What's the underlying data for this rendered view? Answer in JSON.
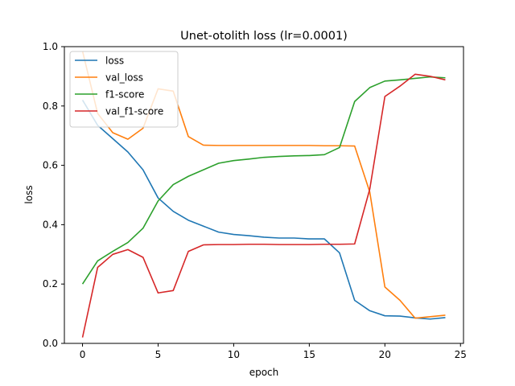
{
  "chart_data": {
    "type": "line",
    "title": "Unet-otolith loss (lr=0.0001)",
    "xlabel": "epoch",
    "ylabel": "loss",
    "xlim": [
      -1.2,
      25.2
    ],
    "ylim": [
      0,
      1.0
    ],
    "xticks": [
      0,
      5,
      10,
      15,
      20,
      25
    ],
    "yticks": [
      0.0,
      0.2,
      0.4,
      0.6,
      0.8,
      1.0
    ],
    "ytick_labels": [
      "0.0",
      "0.2",
      "0.4",
      "0.6",
      "0.8",
      "1.0"
    ],
    "grid": false,
    "legend_position": "upper-left",
    "x": [
      0,
      1,
      2,
      3,
      4,
      5,
      6,
      7,
      8,
      9,
      10,
      11,
      12,
      13,
      14,
      15,
      16,
      17,
      18,
      19,
      20,
      21,
      22,
      23,
      24
    ],
    "series": [
      {
        "name": "loss",
        "color": "#1f77b4",
        "values": [
          0.82,
          0.735,
          0.69,
          0.645,
          0.585,
          0.49,
          0.445,
          0.415,
          0.395,
          0.375,
          0.367,
          0.363,
          0.358,
          0.355,
          0.355,
          0.352,
          0.352,
          0.305,
          0.145,
          0.11,
          0.093,
          0.092,
          0.086,
          0.082,
          0.087
        ]
      },
      {
        "name": "val_loss",
        "color": "#ff7f0e",
        "values": [
          0.985,
          0.775,
          0.71,
          0.688,
          0.725,
          0.858,
          0.85,
          0.697,
          0.668,
          0.667,
          0.667,
          0.667,
          0.667,
          0.667,
          0.667,
          0.667,
          0.666,
          0.666,
          0.665,
          0.51,
          0.19,
          0.145,
          0.085,
          0.09,
          0.095
        ]
      },
      {
        "name": "f1-score",
        "color": "#2ca02c",
        "values": [
          0.2,
          0.278,
          0.31,
          0.34,
          0.388,
          0.48,
          0.535,
          0.563,
          0.585,
          0.607,
          0.616,
          0.621,
          0.627,
          0.63,
          0.632,
          0.633,
          0.636,
          0.66,
          0.815,
          0.862,
          0.884,
          0.888,
          0.893,
          0.898,
          0.895
        ]
      },
      {
        "name": "val_f1-score",
        "color": "#d62728",
        "values": [
          0.02,
          0.256,
          0.3,
          0.316,
          0.29,
          0.17,
          0.178,
          0.31,
          0.332,
          0.333,
          0.333,
          0.334,
          0.334,
          0.333,
          0.333,
          0.333,
          0.334,
          0.334,
          0.335,
          0.52,
          0.832,
          0.867,
          0.907,
          0.9,
          0.888
        ]
      }
    ]
  }
}
